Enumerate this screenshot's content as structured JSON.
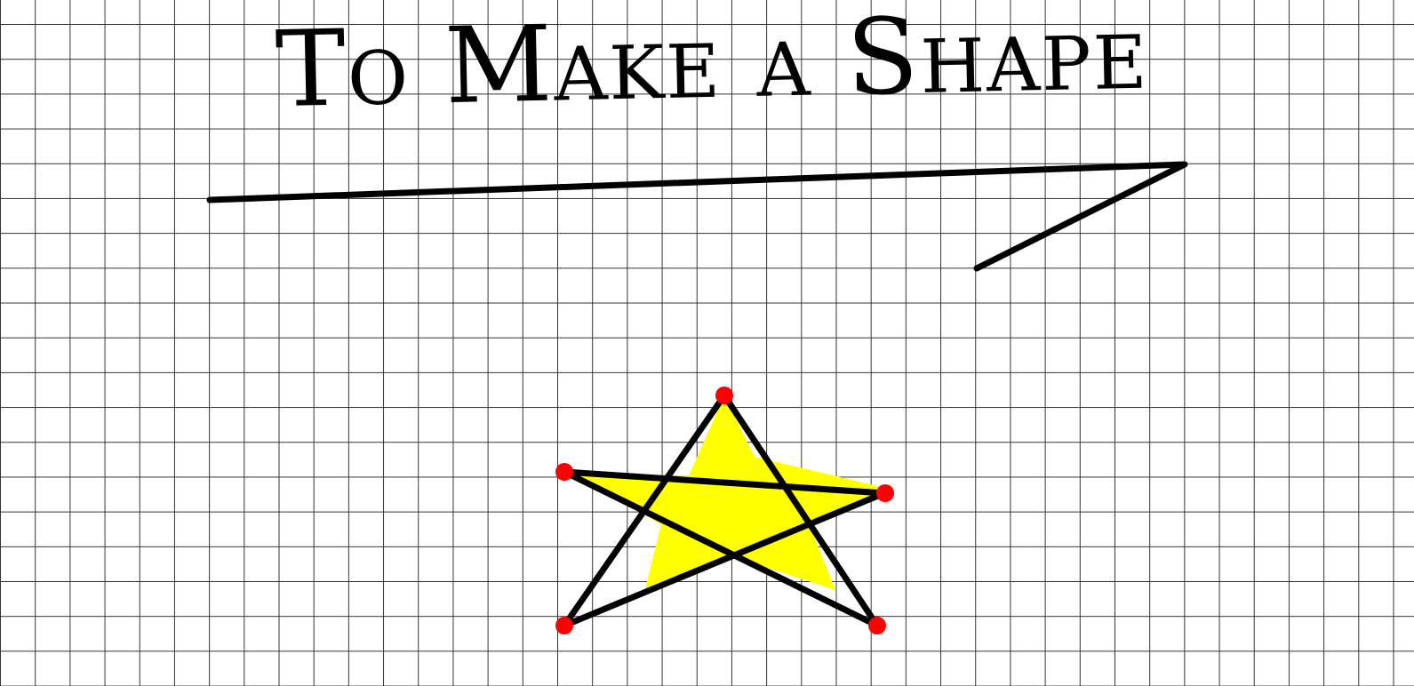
{
  "title": "To Make a Shape",
  "colors": {
    "grid": "#333333",
    "star_fill": "#ffff00",
    "star_outline": "#000000",
    "vertex": "#ff0000"
  },
  "star": {
    "vertices": 5,
    "marked_vertices": true
  }
}
